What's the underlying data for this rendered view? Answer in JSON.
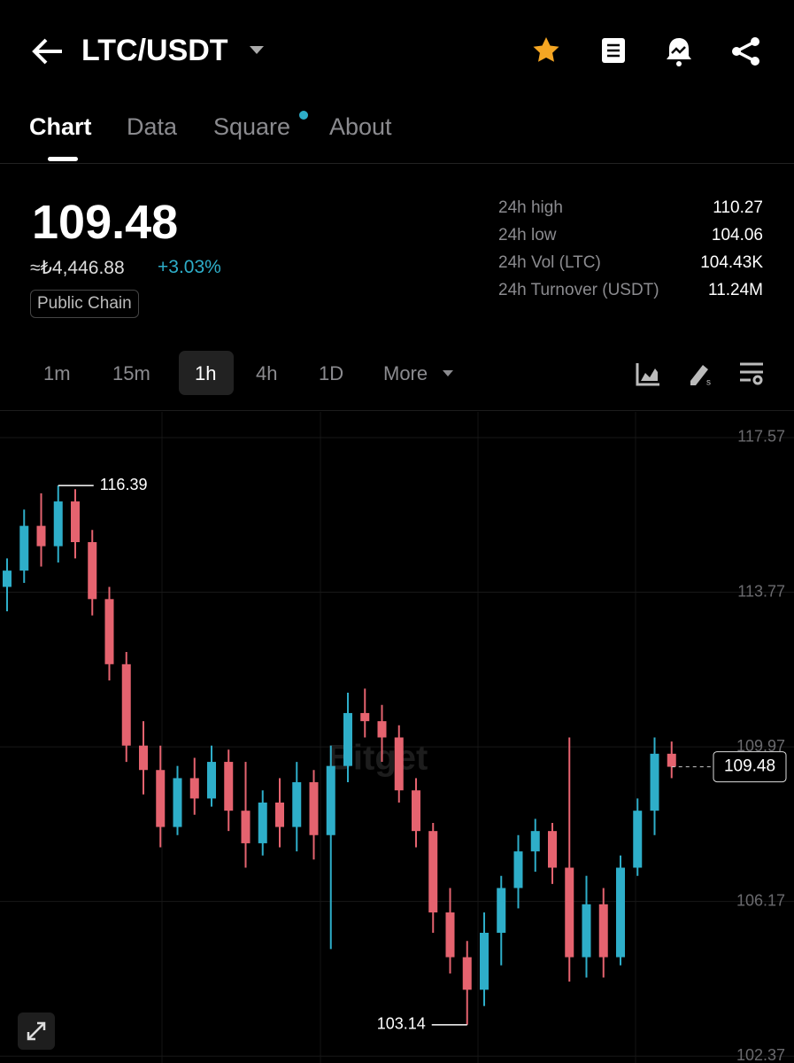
{
  "header": {
    "pair": "LTC/USDT"
  },
  "tabs": [
    "Chart",
    "Data",
    "Square",
    "About"
  ],
  "price": {
    "last": "109.48",
    "fiat": "≈₺4,446.88",
    "change": "+3.03%",
    "tag": "Public Chain"
  },
  "stats": [
    {
      "label": "24h high",
      "value": "110.27"
    },
    {
      "label": "24h low",
      "value": "104.06"
    },
    {
      "label": "24h Vol (LTC)",
      "value": "104.43K"
    },
    {
      "label": "24h Turnover (USDT)",
      "value": "11.24M"
    }
  ],
  "intervals": [
    "1m",
    "15m",
    "1h",
    "4h",
    "1D",
    "More"
  ],
  "chart_data": {
    "type": "candlestick",
    "watermark": "Bitget",
    "up_color": "#2eaec9",
    "down_color": "#e5636f",
    "ylim": [
      102.2,
      118.2
    ],
    "yticks": [
      117.57,
      113.77,
      109.97,
      106.17,
      102.37
    ],
    "grid": true,
    "open": [
      113.9,
      114.3,
      115.4,
      114.9,
      116.0,
      115.0,
      113.6,
      112.0,
      110.0,
      109.4,
      108.0,
      109.2,
      108.7,
      109.6,
      108.4,
      107.6,
      108.6,
      108.0,
      109.1,
      107.8,
      109.5,
      110.8,
      110.6,
      110.2,
      108.9,
      107.9,
      105.9,
      104.8,
      104.0,
      105.4,
      106.5,
      107.4,
      107.9,
      107.0,
      104.8,
      106.1,
      104.8,
      107.0,
      108.4,
      109.8
    ],
    "high": [
      114.6,
      115.8,
      116.2,
      116.39,
      116.3,
      115.3,
      113.9,
      112.3,
      110.6,
      110.0,
      109.5,
      109.7,
      110.0,
      109.9,
      109.6,
      108.9,
      109.2,
      109.6,
      109.4,
      110.0,
      111.3,
      111.4,
      111.0,
      110.5,
      109.2,
      108.1,
      106.5,
      105.2,
      105.9,
      106.8,
      107.8,
      108.2,
      108.1,
      110.2,
      106.8,
      106.5,
      107.3,
      108.7,
      110.2,
      110.1
    ],
    "low": [
      113.3,
      114.0,
      114.4,
      114.5,
      114.6,
      113.2,
      111.6,
      109.6,
      108.8,
      107.5,
      107.8,
      108.3,
      108.5,
      107.9,
      107.0,
      107.3,
      107.5,
      107.4,
      107.2,
      105.0,
      109.1,
      110.2,
      109.6,
      108.6,
      107.5,
      105.4,
      104.4,
      103.14,
      103.6,
      104.6,
      106.0,
      106.9,
      106.6,
      104.2,
      104.3,
      104.3,
      104.6,
      106.8,
      107.8,
      109.2
    ],
    "close": [
      114.3,
      115.4,
      114.9,
      116.0,
      115.0,
      113.6,
      112.0,
      110.0,
      109.4,
      108.0,
      109.2,
      108.7,
      109.6,
      108.4,
      107.6,
      108.6,
      108.0,
      109.1,
      107.8,
      109.5,
      110.8,
      110.6,
      110.2,
      108.9,
      107.9,
      105.9,
      104.8,
      104.0,
      105.4,
      106.5,
      107.4,
      107.9,
      107.0,
      104.8,
      106.1,
      104.8,
      107.0,
      108.4,
      109.8,
      109.48
    ],
    "max_marker": 116.39,
    "min_marker": 103.14,
    "last_price": 109.48
  }
}
